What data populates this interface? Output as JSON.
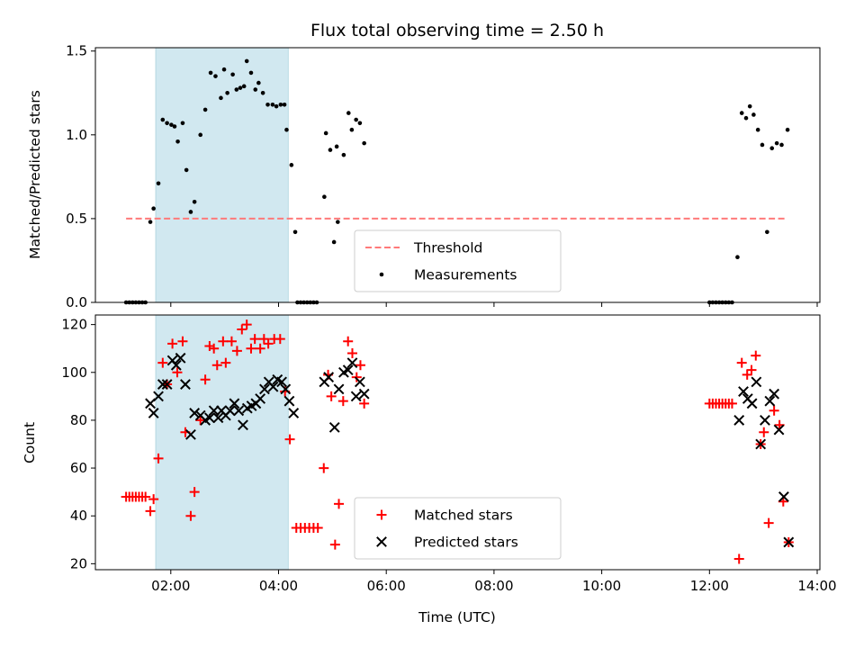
{
  "chart_data": [
    {
      "type": "scatter",
      "title": "Flux total observing time = 2.50 h",
      "xlabel": "",
      "ylabel": "Matched/Predicted stars",
      "ylim": [
        0,
        1.52
      ],
      "xlim": [
        0.6,
        14.05
      ],
      "yticks": [
        0,
        0.5,
        1.0,
        1.5
      ],
      "ytick_labels": [
        "0.0",
        "0.5",
        "1.0",
        "1.5"
      ],
      "shaded_span": [
        1.72,
        4.18
      ],
      "shade_color": "#d1e8f0",
      "threshold": {
        "name": "Threshold",
        "y": 0.5,
        "x_range": [
          1.17,
          13.45
        ],
        "color": "#ff7a7a"
      },
      "legend": {
        "placement": "lower-center",
        "entries": [
          "Threshold",
          "Measurements"
        ]
      },
      "series": [
        {
          "name": "Measurements",
          "color": "#000000",
          "marker": "dot",
          "points": [
            [
              1.17,
              0
            ],
            [
              1.23,
              0
            ],
            [
              1.29,
              0
            ],
            [
              1.35,
              0
            ],
            [
              1.41,
              0
            ],
            [
              1.47,
              0
            ],
            [
              1.53,
              0
            ],
            [
              1.62,
              0.48
            ],
            [
              1.68,
              0.56
            ],
            [
              1.77,
              0.71
            ],
            [
              1.85,
              1.09
            ],
            [
              1.93,
              1.07
            ],
            [
              2.01,
              1.06
            ],
            [
              2.07,
              1.05
            ],
            [
              2.13,
              0.96
            ],
            [
              2.22,
              1.07
            ],
            [
              2.29,
              0.79
            ],
            [
              2.37,
              0.54
            ],
            [
              2.44,
              0.6
            ],
            [
              2.55,
              1.0
            ],
            [
              2.64,
              1.15
            ],
            [
              2.74,
              1.37
            ],
            [
              2.83,
              1.35
            ],
            [
              2.93,
              1.22
            ],
            [
              2.99,
              1.39
            ],
            [
              3.05,
              1.25
            ],
            [
              3.15,
              1.36
            ],
            [
              3.22,
              1.27
            ],
            [
              3.29,
              1.28
            ],
            [
              3.36,
              1.29
            ],
            [
              3.41,
              1.44
            ],
            [
              3.49,
              1.37
            ],
            [
              3.57,
              1.27
            ],
            [
              3.63,
              1.31
            ],
            [
              3.71,
              1.25
            ],
            [
              3.8,
              1.18
            ],
            [
              3.89,
              1.18
            ],
            [
              3.96,
              1.17
            ],
            [
              4.04,
              1.18
            ],
            [
              4.11,
              1.18
            ],
            [
              4.15,
              1.03
            ],
            [
              4.24,
              0.82
            ],
            [
              4.31,
              0.42
            ],
            [
              4.35,
              0
            ],
            [
              4.41,
              0
            ],
            [
              4.47,
              0
            ],
            [
              4.53,
              0
            ],
            [
              4.59,
              0
            ],
            [
              4.65,
              0
            ],
            [
              4.71,
              0
            ],
            [
              4.85,
              0.63
            ],
            [
              4.88,
              1.01
            ],
            [
              4.96,
              0.91
            ],
            [
              5.03,
              0.36
            ],
            [
              5.1,
              0.48
            ],
            [
              5.08,
              0.93
            ],
            [
              5.21,
              0.88
            ],
            [
              5.3,
              1.13
            ],
            [
              5.36,
              1.03
            ],
            [
              5.44,
              1.09
            ],
            [
              5.51,
              1.07
            ],
            [
              5.59,
              0.95
            ],
            [
              12.0,
              0
            ],
            [
              12.06,
              0
            ],
            [
              12.12,
              0
            ],
            [
              12.18,
              0
            ],
            [
              12.24,
              0
            ],
            [
              12.3,
              0
            ],
            [
              12.36,
              0
            ],
            [
              12.42,
              0
            ],
            [
              12.52,
              0.27
            ],
            [
              12.6,
              1.13
            ],
            [
              12.68,
              1.1
            ],
            [
              12.75,
              1.17
            ],
            [
              12.82,
              1.12
            ],
            [
              12.9,
              1.03
            ],
            [
              12.98,
              0.94
            ],
            [
              13.07,
              0.42
            ],
            [
              13.16,
              0.92
            ],
            [
              13.25,
              0.95
            ],
            [
              13.34,
              0.94
            ],
            [
              13.45,
              1.03
            ]
          ]
        }
      ]
    },
    {
      "type": "scatter",
      "title": "",
      "xlabel": "Time (UTC)",
      "ylabel": "Count",
      "ylim": [
        17.5,
        124
      ],
      "xlim": [
        0.6,
        14.05
      ],
      "yticks": [
        20,
        40,
        60,
        80,
        100,
        120
      ],
      "ytick_labels": [
        "20",
        "40",
        "60",
        "80",
        "100",
        "120"
      ],
      "xticks": [
        2,
        4,
        6,
        8,
        10,
        12,
        14
      ],
      "xtick_labels": [
        "02:00",
        "04:00",
        "06:00",
        "08:00",
        "10:00",
        "12:00",
        "14:00"
      ],
      "shaded_span": [
        1.72,
        4.18
      ],
      "shade_color": "#d1e8f0",
      "legend": {
        "placement": "lower-center",
        "entries": [
          "Matched stars",
          "Predicted stars"
        ]
      },
      "series": [
        {
          "name": "Matched stars",
          "color": "#ff0000",
          "marker": "plus",
          "points": [
            [
              1.17,
              48
            ],
            [
              1.23,
              48
            ],
            [
              1.29,
              48
            ],
            [
              1.35,
              48
            ],
            [
              1.41,
              48
            ],
            [
              1.47,
              48
            ],
            [
              1.53,
              48
            ],
            [
              1.62,
              42
            ],
            [
              1.68,
              47
            ],
            [
              1.77,
              64
            ],
            [
              1.85,
              104
            ],
            [
              1.93,
              95
            ],
            [
              2.03,
              112
            ],
            [
              2.12,
              100
            ],
            [
              2.22,
              113
            ],
            [
              2.27,
              75
            ],
            [
              2.37,
              40
            ],
            [
              2.44,
              50
            ],
            [
              2.55,
              80
            ],
            [
              2.64,
              97
            ],
            [
              2.72,
              111
            ],
            [
              2.8,
              110
            ],
            [
              2.86,
              103
            ],
            [
              2.97,
              113
            ],
            [
              3.02,
              104
            ],
            [
              3.13,
              113
            ],
            [
              3.23,
              109
            ],
            [
              3.32,
              118
            ],
            [
              3.41,
              120
            ],
            [
              3.49,
              110
            ],
            [
              3.56,
              114
            ],
            [
              3.66,
              110
            ],
            [
              3.73,
              114
            ],
            [
              3.81,
              112
            ],
            [
              3.92,
              114
            ],
            [
              4.03,
              114
            ],
            [
              4.12,
              92
            ],
            [
              4.21,
              72
            ],
            [
              4.33,
              35
            ],
            [
              4.41,
              35
            ],
            [
              4.49,
              35
            ],
            [
              4.57,
              35
            ],
            [
              4.65,
              35
            ],
            [
              4.73,
              35
            ],
            [
              4.84,
              60
            ],
            [
              4.92,
              99
            ],
            [
              4.98,
              90
            ],
            [
              5.05,
              28
            ],
            [
              5.12,
              45
            ],
            [
              5.2,
              88
            ],
            [
              5.29,
              113
            ],
            [
              5.37,
              108
            ],
            [
              5.45,
              98
            ],
            [
              5.52,
              103
            ],
            [
              5.59,
              87
            ],
            [
              12.0,
              87
            ],
            [
              12.06,
              87
            ],
            [
              12.12,
              87
            ],
            [
              12.18,
              87
            ],
            [
              12.24,
              87
            ],
            [
              12.3,
              87
            ],
            [
              12.36,
              87
            ],
            [
              12.42,
              87
            ],
            [
              12.55,
              22
            ],
            [
              12.6,
              104
            ],
            [
              12.7,
              99
            ],
            [
              12.78,
              101
            ],
            [
              12.86,
              107
            ],
            [
              12.95,
              70
            ],
            [
              13.01,
              75
            ],
            [
              13.1,
              37
            ],
            [
              13.2,
              84
            ],
            [
              13.3,
              78
            ],
            [
              13.37,
              46
            ],
            [
              13.47,
              29
            ]
          ]
        },
        {
          "name": "Predicted stars",
          "color": "#000000",
          "marker": "x",
          "points": [
            [
              1.62,
              87
            ],
            [
              1.68,
              83
            ],
            [
              1.77,
              90
            ],
            [
              1.85,
              95
            ],
            [
              1.93,
              95
            ],
            [
              2.03,
              105
            ],
            [
              2.1,
              103
            ],
            [
              2.18,
              106
            ],
            [
              2.27,
              95
            ],
            [
              2.37,
              74
            ],
            [
              2.44,
              83
            ],
            [
              2.55,
              82
            ],
            [
              2.64,
              80
            ],
            [
              2.72,
              81
            ],
            [
              2.8,
              84
            ],
            [
              2.88,
              81
            ],
            [
              2.94,
              84
            ],
            [
              3.02,
              82
            ],
            [
              3.1,
              84
            ],
            [
              3.18,
              87
            ],
            [
              3.26,
              84
            ],
            [
              3.34,
              78
            ],
            [
              3.42,
              85
            ],
            [
              3.5,
              86
            ],
            [
              3.58,
              87
            ],
            [
              3.66,
              89
            ],
            [
              3.74,
              93
            ],
            [
              3.82,
              96
            ],
            [
              3.9,
              94
            ],
            [
              3.98,
              97
            ],
            [
              4.06,
              96
            ],
            [
              4.13,
              93
            ],
            [
              4.2,
              88
            ],
            [
              4.28,
              83
            ],
            [
              4.85,
              96
            ],
            [
              4.93,
              98
            ],
            [
              5.04,
              77
            ],
            [
              5.12,
              93
            ],
            [
              5.21,
              100
            ],
            [
              5.29,
              101
            ],
            [
              5.37,
              104
            ],
            [
              5.44,
              90
            ],
            [
              5.51,
              96
            ],
            [
              5.59,
              91
            ],
            [
              12.55,
              80
            ],
            [
              12.63,
              92
            ],
            [
              12.71,
              89
            ],
            [
              12.79,
              87
            ],
            [
              12.87,
              96
            ],
            [
              12.95,
              70
            ],
            [
              13.03,
              80
            ],
            [
              13.12,
              88
            ],
            [
              13.2,
              91
            ],
            [
              13.29,
              76
            ],
            [
              13.38,
              48
            ],
            [
              13.47,
              29
            ]
          ]
        }
      ]
    }
  ]
}
